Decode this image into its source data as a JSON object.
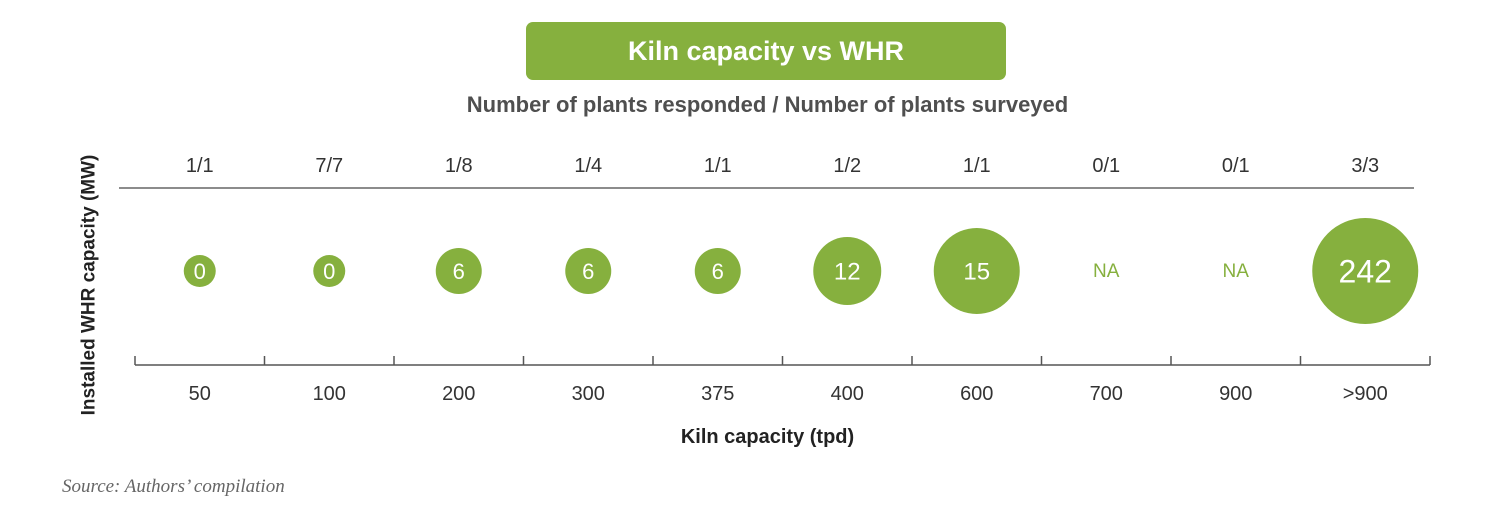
{
  "chart_data": {
    "type": "scatter",
    "title": "Kiln capacity vs WHR",
    "subtitle": "Number of plants responded / Number of plants surveyed",
    "xlabel": "Kiln capacity (tpd)",
    "ylabel": "Installed WHR capacity (MW)",
    "categories": [
      "50",
      "100",
      "200",
      "300",
      "375",
      "400",
      "600",
      "700",
      "900",
      ">900"
    ],
    "responded_surveyed": [
      "1/1",
      "7/7",
      "1/8",
      "1/4",
      "1/1",
      "1/2",
      "1/1",
      "0/1",
      "0/1",
      "3/3"
    ],
    "values": [
      0,
      0,
      6,
      6,
      6,
      12,
      15,
      null,
      null,
      242
    ],
    "value_labels": [
      "0",
      "0",
      "6",
      "6",
      "6",
      "12",
      "15",
      "NA",
      "NA",
      "242"
    ],
    "grid": false,
    "legend": "none"
  },
  "colors": {
    "bubble": "#86b03e",
    "title_bg": "#86b03e",
    "na_text": "#86b03e",
    "axis": "#555555"
  },
  "source": "Source: Authors’ compilation"
}
